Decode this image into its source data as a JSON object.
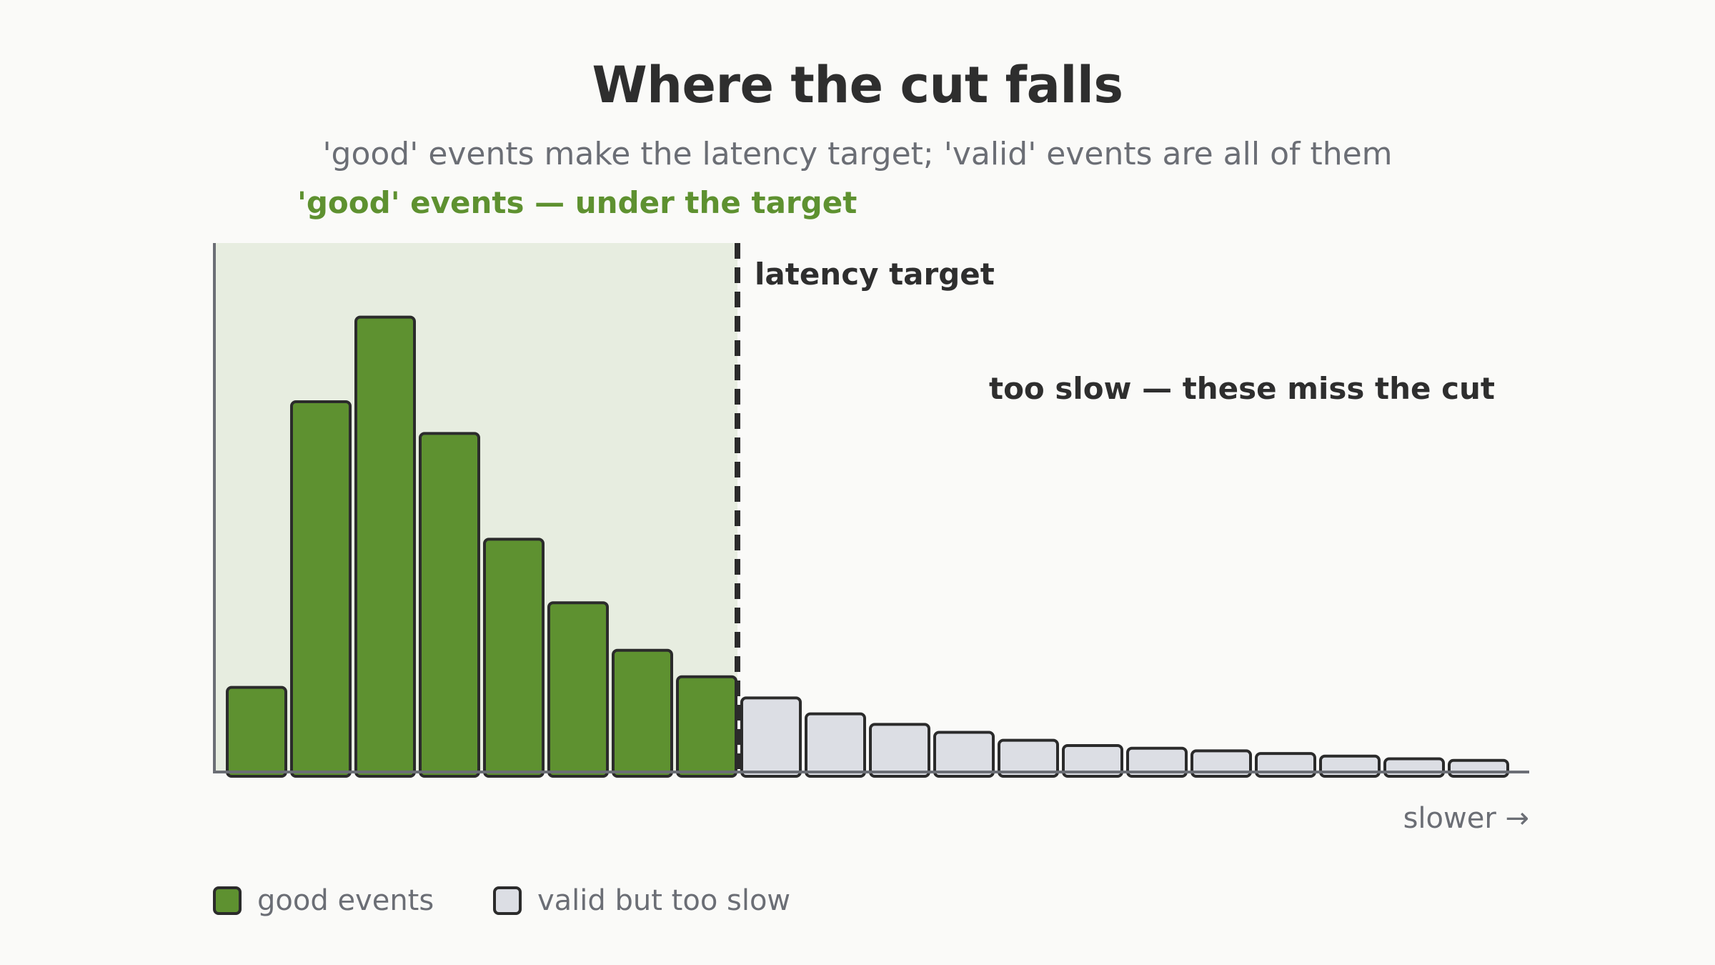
{
  "chart_data": {
    "type": "bar",
    "title": "Where the cut falls",
    "subtitle": "'good' events make the latency target; 'valid' events are all of them",
    "xlabel": "slower →",
    "ylabel": "",
    "ylim": [
      0,
      100
    ],
    "grid": false,
    "legend_placement": "bottom-left",
    "threshold": {
      "label": "latency target",
      "after_bar_index": 7
    },
    "annotations": {
      "good_region": "'good' events — under the target",
      "slow_region": "too slow — these miss the cut"
    },
    "series": [
      {
        "name": "good events",
        "color": "#5e9130",
        "values": [
          16,
          70,
          86,
          64,
          44,
          32,
          23,
          18
        ]
      },
      {
        "name": "valid but too slow",
        "color": "#dcdee4",
        "values": [
          14,
          11,
          9,
          7.5,
          6,
          5,
          4.5,
          4,
          3.5,
          3,
          2.5,
          2.2
        ]
      }
    ]
  },
  "colors": {
    "good": "#5e9130",
    "slow": "#dcdee4",
    "good_region_bg": "#e7ede0",
    "good_label": "#5e9130",
    "outline": "#2b2b2b",
    "axis": "#6b6e75"
  }
}
